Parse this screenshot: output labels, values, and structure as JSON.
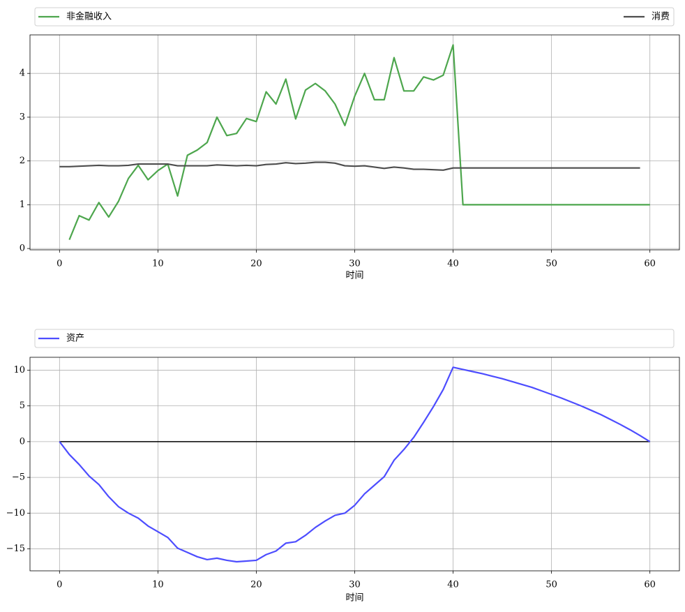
{
  "chart_data": [
    {
      "type": "line",
      "x": [
        0,
        1,
        2,
        3,
        4,
        5,
        6,
        7,
        8,
        9,
        10,
        11,
        12,
        13,
        14,
        15,
        16,
        17,
        18,
        19,
        20,
        21,
        22,
        23,
        24,
        25,
        26,
        27,
        28,
        29,
        30,
        31,
        32,
        33,
        34,
        35,
        36,
        37,
        38,
        39,
        40,
        41,
        42,
        43,
        44,
        45,
        46,
        47,
        48,
        49,
        50,
        51,
        52,
        53,
        54,
        55,
        56,
        57,
        58,
        59,
        60
      ],
      "series": [
        {
          "name": "非金融收入",
          "color": "#4da64d",
          "values": [
            null,
            0.2,
            0.75,
            0.65,
            1.05,
            0.72,
            1.08,
            1.6,
            1.9,
            1.57,
            1.78,
            1.93,
            1.2,
            2.13,
            2.25,
            2.42,
            3.0,
            2.58,
            2.63,
            2.97,
            2.9,
            3.58,
            3.3,
            3.87,
            2.96,
            3.62,
            3.77,
            3.6,
            3.3,
            2.81,
            3.48,
            4.0,
            3.4,
            3.4,
            4.36,
            3.6,
            3.6,
            3.92,
            3.85,
            3.96,
            4.65,
            1.0,
            1.0,
            1.0,
            1.0,
            1.0,
            1.0,
            1.0,
            1.0,
            1.0,
            1.0,
            1.0,
            1.0,
            1.0,
            1.0,
            1.0,
            1.0,
            1.0,
            1.0,
            1.0,
            1.0
          ]
        },
        {
          "name": "消费",
          "color": "#4d4d4d",
          "values": [
            1.87,
            1.87,
            1.88,
            1.89,
            1.9,
            1.89,
            1.89,
            1.9,
            1.93,
            1.93,
            1.93,
            1.93,
            1.89,
            1.89,
            1.89,
            1.89,
            1.91,
            1.9,
            1.89,
            1.9,
            1.89,
            1.92,
            1.93,
            1.96,
            1.94,
            1.95,
            1.97,
            1.97,
            1.95,
            1.89,
            1.88,
            1.89,
            1.86,
            1.83,
            1.86,
            1.84,
            1.81,
            1.81,
            1.8,
            1.79,
            1.84,
            1.84,
            1.84,
            1.84,
            1.84,
            1.84,
            1.84,
            1.84,
            1.84,
            1.84,
            1.84,
            1.84,
            1.84,
            1.84,
            1.84,
            1.84,
            1.84,
            1.84,
            1.84,
            1.84,
            null
          ]
        }
      ],
      "xlabel": "时间",
      "xlim": [
        -3,
        63
      ],
      "ylim": [
        -0.03,
        4.88
      ],
      "xticks": [
        0,
        10,
        20,
        30,
        40,
        50,
        60
      ],
      "yticks": [
        0,
        1,
        2,
        3,
        4
      ],
      "grid": true,
      "legend": "top-outside"
    },
    {
      "type": "line",
      "x": [
        0,
        1,
        2,
        3,
        4,
        5,
        6,
        7,
        8,
        9,
        10,
        11,
        12,
        13,
        14,
        15,
        16,
        17,
        18,
        19,
        20,
        21,
        22,
        23,
        24,
        25,
        26,
        27,
        28,
        29,
        30,
        31,
        32,
        33,
        34,
        35,
        36,
        37,
        38,
        39,
        40,
        41,
        42,
        43,
        44,
        45,
        46,
        47,
        48,
        49,
        50,
        51,
        52,
        53,
        54,
        55,
        56,
        57,
        58,
        59,
        60
      ],
      "series": [
        {
          "name": "资产",
          "color": "#4d4dff",
          "values": [
            0,
            -1.8,
            -3.2,
            -4.8,
            -6.0,
            -7.7,
            -9.1,
            -10.0,
            -10.7,
            -11.8,
            -12.6,
            -13.4,
            -14.9,
            -15.5,
            -16.1,
            -16.5,
            -16.3,
            -16.6,
            -16.8,
            -16.7,
            -16.6,
            -15.8,
            -15.3,
            -14.2,
            -14.0,
            -13.1,
            -12.0,
            -11.1,
            -10.3,
            -10.0,
            -8.9,
            -7.3,
            -6.1,
            -4.9,
            -2.6,
            -1.1,
            0.6,
            2.7,
            4.9,
            7.3,
            10.4,
            10.1,
            9.8,
            9.5,
            9.15,
            8.8,
            8.4,
            8.0,
            7.6,
            7.1,
            6.6,
            6.1,
            5.55,
            5.0,
            4.4,
            3.8,
            3.1,
            2.4,
            1.65,
            0.85,
            0
          ]
        }
      ],
      "reference_line": {
        "y": 0,
        "x": [
          0,
          60
        ],
        "color": "#000000"
      },
      "xlabel": "时间",
      "xlim": [
        -3,
        63
      ],
      "ylim": [
        -18.07,
        11.8
      ],
      "xticks": [
        0,
        10,
        20,
        30,
        40,
        50,
        60
      ],
      "yticks": [
        {
          "value": -15,
          "label": "−15"
        },
        {
          "value": -10,
          "label": "−10"
        },
        {
          "value": -5,
          "label": "−5"
        },
        0,
        5,
        10
      ],
      "grid": true,
      "legend": "top-outside"
    }
  ]
}
